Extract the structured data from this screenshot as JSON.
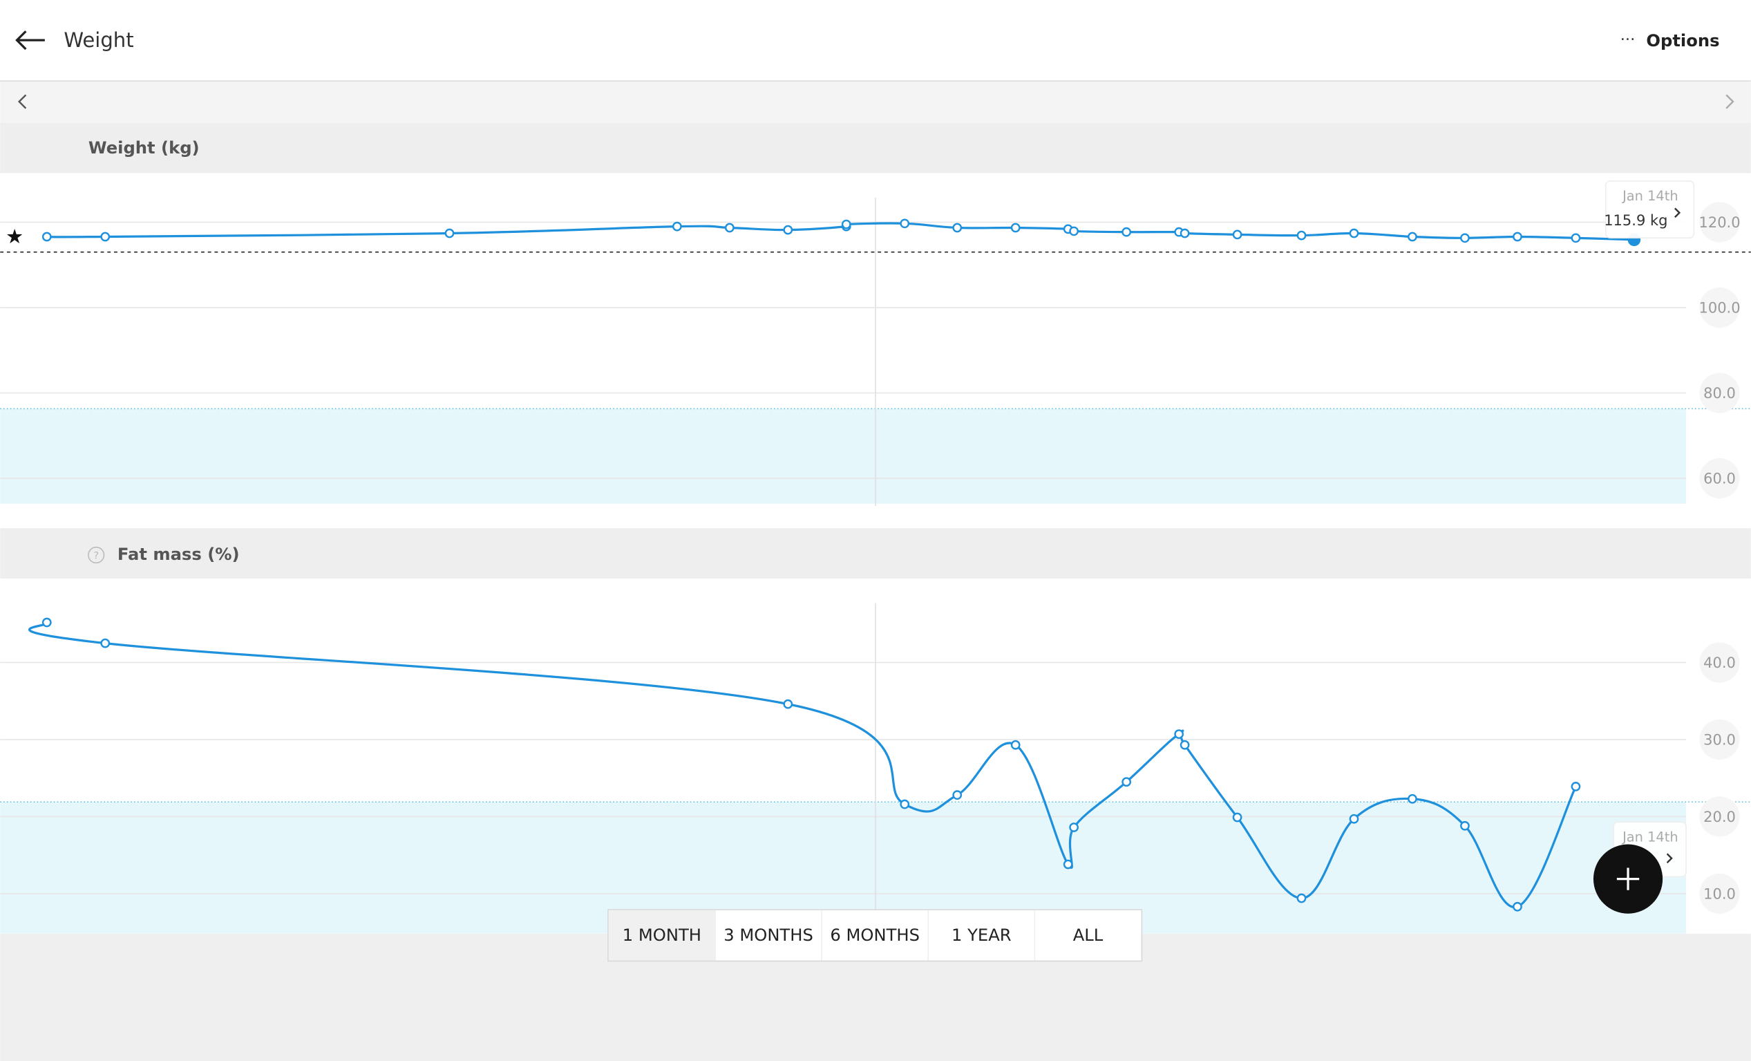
{
  "header": {
    "title": "Weight",
    "options": "Options"
  },
  "chart_data": [
    {
      "type": "line",
      "title": "Weight (kg)",
      "color": "#1e90dc",
      "x": [
        0.8,
        1.8,
        7.7,
        11.6,
        12.5,
        13.5,
        14.5,
        14.5,
        15.5,
        16.4,
        17.4,
        18.3,
        18.4,
        19.3,
        20.2,
        20.3,
        21.2,
        22.3,
        23.2,
        24.2,
        25.1,
        26.0,
        27.0,
        28.0
      ],
      "values": [
        116.6,
        116.6,
        117.4,
        119.0,
        118.7,
        118.2,
        119.0,
        119.5,
        119.7,
        118.7,
        118.7,
        118.4,
        117.9,
        117.7,
        117.7,
        117.4,
        117.1,
        116.9,
        117.4,
        116.6,
        116.3,
        116.6,
        116.3,
        115.9
      ],
      "xlim": [
        0,
        30
      ],
      "ylim": [
        48.3,
        131.5
      ],
      "yticks": [
        {
          "value": 60,
          "label": "60.0"
        },
        {
          "value": 80,
          "label": "80.0"
        },
        {
          "value": 100,
          "label": "100.0"
        },
        {
          "value": 120,
          "label": "120.0"
        }
      ],
      "target": 113.0,
      "normal_max": 76.3,
      "tooltip": {
        "date": "Jan 14th",
        "value_label": "115.9 kg"
      }
    },
    {
      "type": "line",
      "title": "Fat mass (%)",
      "color": "#1e90dc",
      "x": [
        0.8,
        1.8,
        13.5,
        15.5,
        16.4,
        17.4,
        18.3,
        18.4,
        19.3,
        20.2,
        20.3,
        21.2,
        22.3,
        23.2,
        24.2,
        25.1,
        26.0,
        27.0
      ],
      "values": [
        45.2,
        42.5,
        34.6,
        21.6,
        22.8,
        29.3,
        13.8,
        18.6,
        24.5,
        30.7,
        29.3,
        19.9,
        9.4,
        19.7,
        22.3,
        18.8,
        8.3,
        23.9
      ],
      "xlim": [
        0,
        30
      ],
      "ylim": [
        4.8,
        50.9
      ],
      "yticks": [
        {
          "value": 10,
          "label": "10.0"
        },
        {
          "value": 20,
          "label": "20.0"
        },
        {
          "value": 30,
          "label": "30.0"
        },
        {
          "value": 40,
          "label": "40.0"
        }
      ],
      "normal_max": 21.9,
      "tooltip": {
        "date": "Jan 14th"
      }
    }
  ],
  "ranges": [
    "1 MONTH",
    "3 MONTHS",
    "6 MONTHS",
    "1 YEAR",
    "ALL"
  ]
}
